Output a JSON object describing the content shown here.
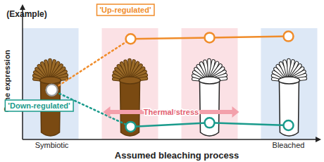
{
  "chart_data": {
    "type": "line",
    "title": "(Example)",
    "x_label": "Assumed bleaching process",
    "y_label": "Gene expression",
    "categories": [
      "Symbiotic",
      null,
      null,
      "Bleached"
    ],
    "ylim": [
      0,
      10
    ],
    "tick_labels": "x",
    "grid": false,
    "series": [
      {
        "name": "'Up-regulated'",
        "color": "#f08c2a",
        "marker": "circle",
        "values": [
          3.8,
          7.7,
          7.8,
          7.9
        ]
      },
      {
        "name": "'Down-regulated'",
        "color": "#1a9b8c",
        "marker": "circle",
        "values": [
          3.8,
          1.0,
          1.3,
          1.1
        ]
      }
    ],
    "annotations": [
      "Thermal stress"
    ]
  }
}
